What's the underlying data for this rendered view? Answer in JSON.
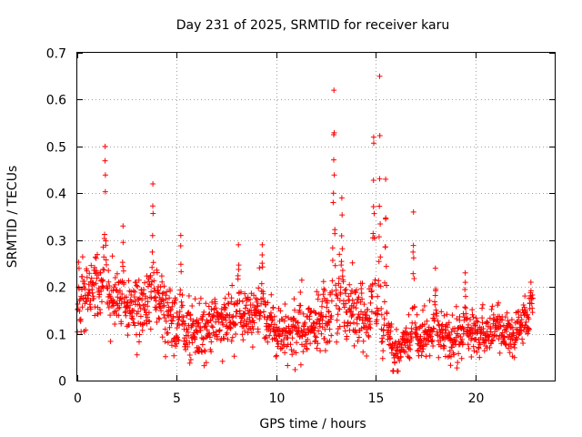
{
  "chart_data": {
    "type": "scatter",
    "title": "Day 231 of 2025, SRMTID for receiver karu",
    "xlabel": "GPS time / hours",
    "ylabel": "SRMTID / TECUs",
    "xlim": [
      0,
      24
    ],
    "ylim": [
      0,
      0.7
    ],
    "xticks": [
      0,
      5,
      10,
      15,
      20
    ],
    "xtick_labels": [
      "0",
      "5",
      "10",
      "15",
      "20"
    ],
    "yticks": [
      0,
      0.1,
      0.2,
      0.3,
      0.4,
      0.5,
      0.6,
      0.7
    ],
    "ytick_labels": [
      "0",
      "0.1",
      "0.2",
      "0.3",
      "0.4",
      "0.5",
      "0.6",
      "0.7"
    ],
    "grid": true,
    "marker": "+",
    "color": "#ff0000",
    "series": [
      {
        "name": "SRMTID",
        "baseline": [
          [
            0.0,
            0.18
          ],
          [
            1.0,
            0.2
          ],
          [
            2.0,
            0.17
          ],
          [
            3.0,
            0.14
          ],
          [
            4.0,
            0.18
          ],
          [
            5.0,
            0.12
          ],
          [
            6.0,
            0.1
          ],
          [
            7.0,
            0.12
          ],
          [
            8.0,
            0.13
          ],
          [
            9.0,
            0.15
          ],
          [
            10.0,
            0.1
          ],
          [
            11.0,
            0.11
          ],
          [
            12.0,
            0.12
          ],
          [
            13.0,
            0.16
          ],
          [
            14.0,
            0.15
          ],
          [
            15.0,
            0.12
          ],
          [
            16.0,
            0.06
          ],
          [
            17.0,
            0.09
          ],
          [
            18.0,
            0.1
          ],
          [
            19.0,
            0.09
          ],
          [
            20.0,
            0.1
          ],
          [
            21.0,
            0.11
          ],
          [
            22.0,
            0.1
          ],
          [
            22.8,
            0.15
          ]
        ],
        "spread": [
          [
            0.0,
            0.07
          ],
          [
            2.0,
            0.06
          ],
          [
            5.0,
            0.06
          ],
          [
            10.0,
            0.05
          ],
          [
            13.0,
            0.07
          ],
          [
            15.0,
            0.06
          ],
          [
            16.0,
            0.04
          ],
          [
            18.0,
            0.05
          ],
          [
            21.0,
            0.04
          ],
          [
            22.8,
            0.04
          ]
        ],
        "peaks": [
          {
            "x": 1.4,
            "y": 0.5,
            "width": 0.1
          },
          {
            "x": 2.3,
            "y": 0.33,
            "width": 0.08
          },
          {
            "x": 3.8,
            "y": 0.42,
            "width": 0.08
          },
          {
            "x": 5.2,
            "y": 0.31,
            "width": 0.08
          },
          {
            "x": 8.1,
            "y": 0.29,
            "width": 0.1
          },
          {
            "x": 9.3,
            "y": 0.29,
            "width": 0.1
          },
          {
            "x": 12.9,
            "y": 0.62,
            "width": 0.12
          },
          {
            "x": 13.3,
            "y": 0.39,
            "width": 0.1
          },
          {
            "x": 14.9,
            "y": 0.52,
            "width": 0.12
          },
          {
            "x": 15.2,
            "y": 0.65,
            "width": 0.1
          },
          {
            "x": 15.5,
            "y": 0.43,
            "width": 0.1
          },
          {
            "x": 16.9,
            "y": 0.36,
            "width": 0.1
          },
          {
            "x": 18.0,
            "y": 0.24,
            "width": 0.1
          },
          {
            "x": 19.5,
            "y": 0.23,
            "width": 0.1
          },
          {
            "x": 22.8,
            "y": 0.21,
            "width": 0.08
          }
        ],
        "x_start": 0.0,
        "x_end": 22.9,
        "point_count": 1700
      }
    ]
  }
}
